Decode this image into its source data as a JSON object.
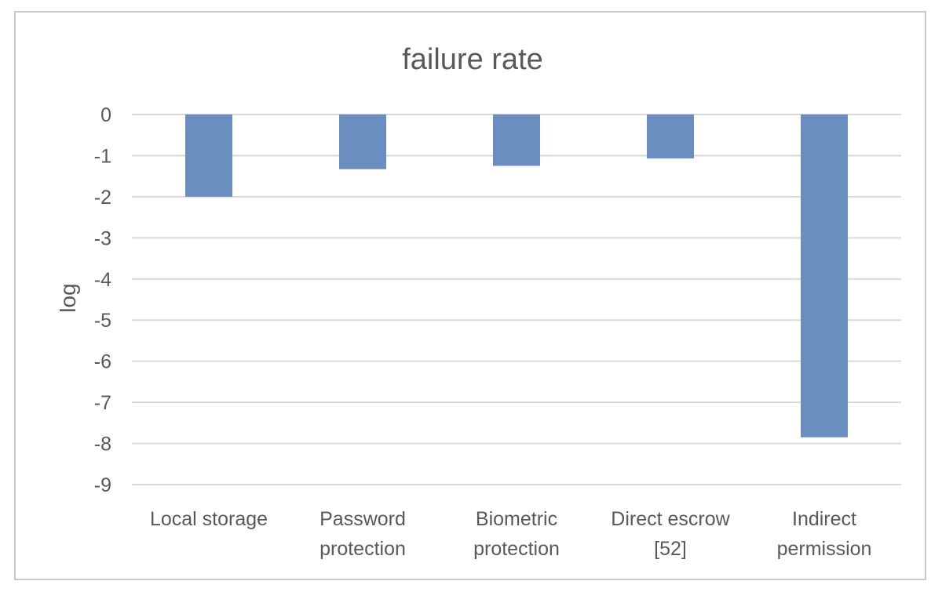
{
  "chart_data": {
    "type": "bar",
    "title": "failure rate",
    "xlabel": "",
    "ylabel": "log",
    "categories": [
      [
        "Local storage"
      ],
      [
        "Password",
        "protection"
      ],
      [
        "Biometric",
        "protection"
      ],
      [
        "Direct escrow",
        "[52]"
      ],
      [
        "Indirect",
        "permission"
      ]
    ],
    "values": [
      -2.0,
      -1.33,
      -1.25,
      -1.07,
      -7.85
    ],
    "ylim": [
      -9,
      0
    ],
    "yticks": [
      "0",
      "-1",
      "-2",
      "-3",
      "-4",
      "-5",
      "-6",
      "-7",
      "-8",
      "-9"
    ],
    "grid": true,
    "legend": "none",
    "colors": {
      "bar": "#6a8ebf",
      "grid": "#d9d9d9",
      "text": "#595959",
      "border": "#c9c9c9"
    }
  }
}
